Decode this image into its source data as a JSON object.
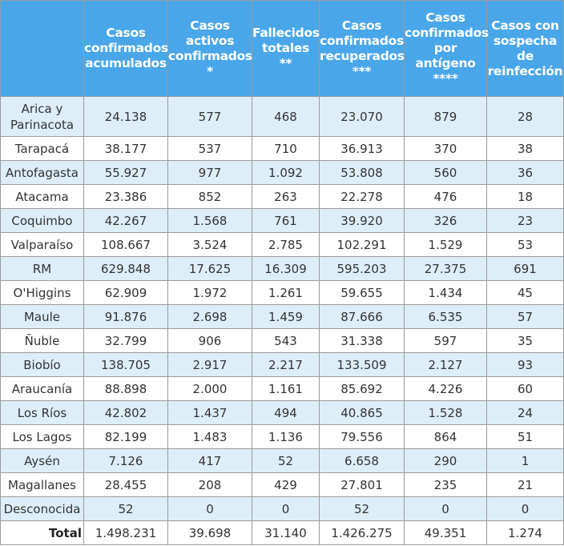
{
  "headers": [
    "",
    "Casos confirmados acumulados",
    "Casos activos confirmados *",
    "Fallecidos totales **",
    "Casos confirmados recuperados ***",
    "Casos confirmados por antígeno ****",
    "Casos con sospecha de reinfección"
  ],
  "header_lines": [
    [],
    [
      "Casos",
      "confirmados",
      "acumulados"
    ],
    [
      "Casos",
      "activos",
      "confirmados",
      "*"
    ],
    [
      "Fallecidos",
      "totales",
      "**"
    ],
    [
      "Casos",
      "confirmados",
      "recuperados",
      "***"
    ],
    [
      "Casos",
      "confirmados",
      "por",
      "antígeno",
      "****"
    ],
    [
      "Casos con",
      "sospecha",
      "de",
      "reinfección"
    ]
  ],
  "rows": [
    [
      "Arica y Parinacota",
      "24.138",
      "577",
      "468",
      "23.070",
      "879",
      "28"
    ],
    [
      "Tarapacá",
      "38.177",
      "537",
      "710",
      "36.913",
      "370",
      "38"
    ],
    [
      "Antofagasta",
      "55.927",
      "977",
      "1.092",
      "53.808",
      "560",
      "36"
    ],
    [
      "Atacama",
      "23.386",
      "852",
      "263",
      "22.278",
      "476",
      "18"
    ],
    [
      "Coquimbo",
      "42.267",
      "1.568",
      "761",
      "39.920",
      "326",
      "23"
    ],
    [
      "Valparaíso",
      "108.667",
      "3.524",
      "2.785",
      "102.291",
      "1.529",
      "53"
    ],
    [
      "RM",
      "629.848",
      "17.625",
      "16.309",
      "595.203",
      "27.375",
      "691"
    ],
    [
      "O'Higgins",
      "62.909",
      "1.972",
      "1.261",
      "59.655",
      "1.434",
      "45"
    ],
    [
      "Maule",
      "91.876",
      "2.698",
      "1.459",
      "87.666",
      "6.535",
      "57"
    ],
    [
      "Ñuble",
      "32.799",
      "906",
      "543",
      "31.338",
      "597",
      "35"
    ],
    [
      "Biobío",
      "138.705",
      "2.917",
      "2.217",
      "133.509",
      "2.127",
      "93"
    ],
    [
      "Araucanía",
      "88.898",
      "2.000",
      "1.161",
      "85.692",
      "4.226",
      "60"
    ],
    [
      "Los Ríos",
      "42.802",
      "1.437",
      "494",
      "40.865",
      "1.528",
      "24"
    ],
    [
      "Los Lagos",
      "82.199",
      "1.483",
      "1.136",
      "79.556",
      "864",
      "51"
    ],
    [
      "Aysén",
      "7.126",
      "417",
      "52",
      "6.658",
      "290",
      "1"
    ],
    [
      "Magallanes",
      "28.455",
      "208",
      "429",
      "27.801",
      "235",
      "21"
    ],
    [
      "Desconocida",
      "52",
      "0",
      "0",
      "52",
      "0",
      "0"
    ]
  ],
  "total": [
    "Total",
    "1.498.231",
    "39.698",
    "31.140",
    "1.426.275",
    "49.351",
    "1.274"
  ],
  "colors": {
    "header_bg": "#49a6e9",
    "header_text": "#ffffff",
    "row_odd": "#ddeef9",
    "row_even": "#ffffff",
    "border": "#9a9a9a",
    "text": "#333333"
  }
}
